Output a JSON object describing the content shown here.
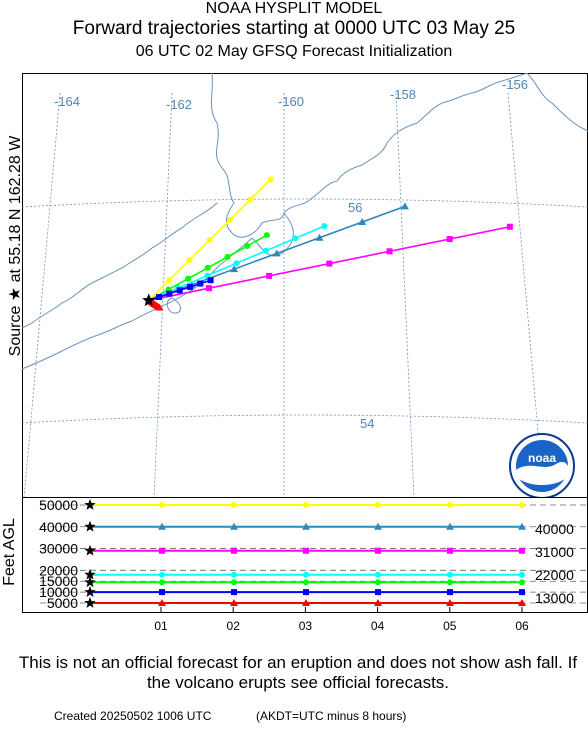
{
  "header": {
    "line1": "NOAA HYSPLIT MODEL",
    "line2": "Forward trajectories starting at 0000 UTC 03 May 25",
    "line3": "06 UTC 02 May     GFSQ  Forecast Initialization"
  },
  "side_label": "Source ★ at    55.18 N  162.28 W",
  "logo_text": "noaa",
  "chart_data": [
    {
      "type": "map-trajectory",
      "longitude_labels": [
        "-164",
        "-162",
        "-160",
        "-158",
        "-156"
      ],
      "latitude_labels": [
        "56",
        "54"
      ],
      "source": {
        "lat": 55.18,
        "lon": -162.28
      },
      "series": [
        {
          "altitude_ft": 50000,
          "color": "#ffff00",
          "end_label": "",
          "marker": "circle",
          "path": [
            [
              -162.28,
              55.18
            ],
            [
              -160.1,
              56.3
            ]
          ]
        },
        {
          "altitude_ft": 40000,
          "color": "#2e88c0",
          "end_label": "40000",
          "marker": "triangle",
          "path": [
            [
              -162.28,
              55.18
            ],
            [
              -157.8,
              56.1
            ]
          ]
        },
        {
          "altitude_ft": 31000,
          "color": "#ff00ff",
          "end_label": "31000",
          "marker": "square",
          "path": [
            [
              -162.28,
              55.18
            ],
            [
              -156.0,
              55.95
            ]
          ]
        },
        {
          "altitude_ft": 22000,
          "color": "#00ffff",
          "end_label": "22000",
          "marker": "circle",
          "path": [
            [
              -162.28,
              55.18
            ],
            [
              -159.2,
              55.9
            ]
          ]
        },
        {
          "altitude_ft": 13000,
          "color": "#00ff00",
          "end_label": "13000",
          "marker": "circle",
          "path": [
            [
              -162.28,
              55.18
            ],
            [
              -160.2,
              55.8
            ]
          ]
        },
        {
          "altitude_ft": 10000,
          "color": "#0000ff",
          "end_label": "",
          "marker": "square",
          "path": [
            [
              -162.28,
              55.18
            ],
            [
              -161.2,
              55.38
            ]
          ]
        },
        {
          "altitude_ft": 5000,
          "color": "#ff0000",
          "end_label": "",
          "marker": "triangle",
          "path": [
            [
              -162.28,
              55.18
            ],
            [
              -162.1,
              55.12
            ]
          ]
        }
      ]
    },
    {
      "type": "line",
      "ylabel": "Feet AGL",
      "y_ticks": [
        5000,
        10000,
        15000,
        20000,
        30000,
        40000,
        50000
      ],
      "x_ticks": [
        "01",
        "02",
        "03",
        "04",
        "05",
        "06"
      ],
      "series": [
        {
          "color": "#ffff00",
          "marker": "circle",
          "values": [
            50000,
            50000,
            50000,
            50000,
            50000,
            50000,
            50000
          ]
        },
        {
          "color": "#2e88c0",
          "marker": "triangle",
          "values": [
            40000,
            40000,
            40000,
            40000,
            40000,
            40000,
            40000
          ]
        },
        {
          "color": "#ff00ff",
          "marker": "square",
          "values": [
            29000,
            29000,
            29000,
            29000,
            29000,
            29000,
            29000
          ]
        },
        {
          "color": "#00ffff",
          "marker": "circle",
          "values": [
            18000,
            18000,
            18000,
            18000,
            18000,
            18000,
            18000
          ]
        },
        {
          "color": "#00ff00",
          "marker": "circle",
          "values": [
            14500,
            14500,
            14500,
            14500,
            14500,
            14500,
            14500
          ]
        },
        {
          "color": "#0000ff",
          "marker": "square",
          "values": [
            10000,
            10000,
            10000,
            10000,
            10000,
            10000,
            10000
          ]
        },
        {
          "color": "#ff0000",
          "marker": "triangle",
          "values": [
            5000,
            5000,
            5000,
            5000,
            5000,
            5000,
            5000
          ]
        }
      ]
    }
  ],
  "footer": {
    "disclaimer": "This is not an official forecast for an eruption and does not show ash fall. If the volcano erupts see official forecasts.",
    "created": "Created 20250502 1006 UTC",
    "akdt": "(AKDT=UTC minus 8 hours)"
  }
}
